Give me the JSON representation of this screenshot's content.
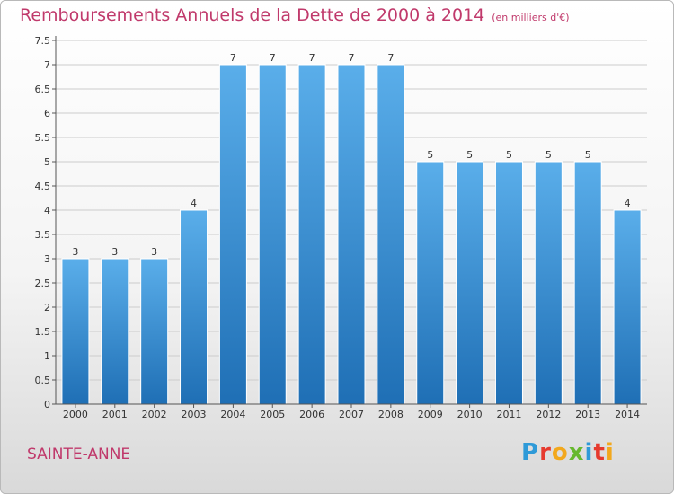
{
  "header": {
    "title": "Remboursements Annuels de la Dette de 2000 à 2014",
    "subtitle": "(en milliers d'€)"
  },
  "footer": {
    "commune": "SAINTE-ANNE",
    "brand": "Proxiti",
    "brand_colors": [
      "#2e9ad8",
      "#e63a2e",
      "#f2a81d",
      "#66b82d",
      "#2e9ad8",
      "#e63a2e",
      "#f2a81d"
    ]
  },
  "colors": {
    "bar_light": "#5aaeea",
    "bar_dark": "#1f6fb5",
    "title": "#c0396b",
    "grid": "#cccccc"
  },
  "chart_data": {
    "type": "bar",
    "title": "Remboursements Annuels de la Dette de 2000 à 2014",
    "subtitle": "(en milliers d'€)",
    "xlabel": "",
    "ylabel": "",
    "categories": [
      "2000",
      "2001",
      "2002",
      "2003",
      "2004",
      "2005",
      "2006",
      "2007",
      "2008",
      "2009",
      "2010",
      "2011",
      "2012",
      "2013",
      "2014"
    ],
    "values": [
      3,
      3,
      3,
      4,
      7,
      7,
      7,
      7,
      7,
      5,
      5,
      5,
      5,
      5,
      4
    ],
    "data_labels": [
      "3",
      "3",
      "3",
      "4",
      "7",
      "7",
      "7",
      "7",
      "7",
      "5",
      "5",
      "5",
      "5",
      "5",
      "4"
    ],
    "ylim": [
      0,
      7.5
    ],
    "yticks": [
      0,
      0.5,
      1,
      1.5,
      2,
      2.5,
      3,
      3.5,
      4,
      4.5,
      5,
      5.5,
      6,
      6.5,
      7,
      7.5
    ],
    "ytick_labels": [
      "0",
      "0.5",
      "1",
      "1.5",
      "2",
      "2.5",
      "3",
      "3.5",
      "4",
      "4.5",
      "5",
      "5.5",
      "6",
      "6.5",
      "7",
      "7.5"
    ],
    "grid": true,
    "legend": "none"
  }
}
